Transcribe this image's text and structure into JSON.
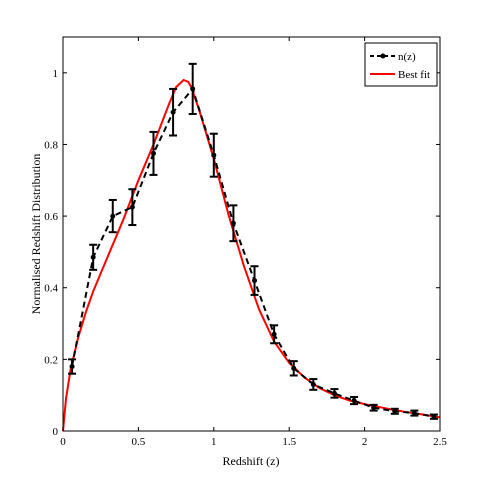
{
  "chart_data": {
    "type": "line",
    "xlabel": "Redshift (z)",
    "ylabel": "Normalised Redshift Distribution",
    "xlim": [
      0,
      2.5
    ],
    "ylim": [
      0,
      1.1
    ],
    "xticks": [
      "0",
      "0.5",
      "1",
      "1.5",
      "2",
      "2.5"
    ],
    "yticks": [
      "0",
      "0.2",
      "0.4",
      "0.6",
      "0.8",
      "1"
    ],
    "grid": false,
    "legend_position": "top-right",
    "series": [
      {
        "name": "n(z)",
        "style": "dashed-black-with-errorbars",
        "color": "#000000",
        "x": [
          0.06,
          0.2,
          0.33,
          0.46,
          0.6,
          0.73,
          0.86,
          1.0,
          1.13,
          1.27,
          1.4,
          1.53,
          1.66,
          1.8,
          1.93,
          2.06,
          2.2,
          2.33,
          2.46
        ],
        "y": [
          0.18,
          0.485,
          0.6,
          0.625,
          0.775,
          0.89,
          0.955,
          0.77,
          0.58,
          0.42,
          0.27,
          0.175,
          0.13,
          0.105,
          0.085,
          0.065,
          0.055,
          0.05,
          0.04
        ],
        "err": [
          0.02,
          0.035,
          0.045,
          0.05,
          0.06,
          0.065,
          0.07,
          0.06,
          0.05,
          0.04,
          0.025,
          0.02,
          0.015,
          0.012,
          0.01,
          0.008,
          0.007,
          0.007,
          0.006
        ]
      },
      {
        "name": "Best fit",
        "style": "solid-red",
        "color": "#ff0000",
        "x": [
          0,
          0.02,
          0.05,
          0.1,
          0.15,
          0.2,
          0.3,
          0.4,
          0.5,
          0.6,
          0.7,
          0.75,
          0.8,
          0.83,
          0.85,
          0.9,
          0.95,
          1.0,
          1.1,
          1.2,
          1.3,
          1.4,
          1.5,
          1.6,
          1.7,
          1.8,
          1.9,
          2.0,
          2.2,
          2.4,
          2.5
        ],
        "y": [
          0.0,
          0.09,
          0.17,
          0.26,
          0.33,
          0.39,
          0.49,
          0.59,
          0.7,
          0.8,
          0.91,
          0.96,
          0.98,
          0.975,
          0.96,
          0.9,
          0.83,
          0.76,
          0.6,
          0.46,
          0.34,
          0.25,
          0.19,
          0.15,
          0.12,
          0.1,
          0.085,
          0.075,
          0.058,
          0.045,
          0.038
        ]
      }
    ]
  }
}
